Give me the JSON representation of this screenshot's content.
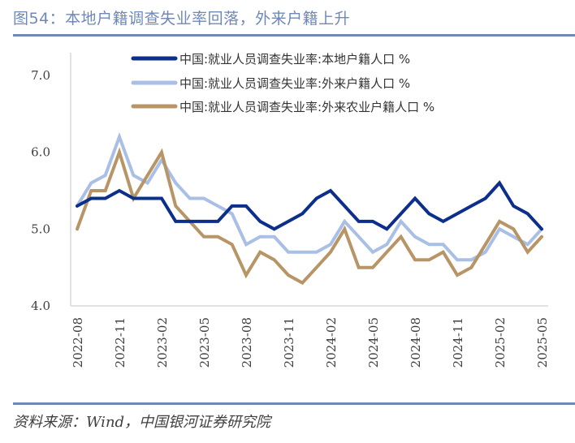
{
  "title": "图54：本地户籍调查失业率回落，外来户籍上升",
  "source": "资料来源：Wind，中国银河证券研究院",
  "chart_data": {
    "type": "line",
    "title": "",
    "xlabel": "",
    "ylabel": "",
    "ylim": [
      4.0,
      7.0
    ],
    "yticks": [
      "4.0",
      "5.0",
      "6.0",
      "7.0"
    ],
    "grid": false,
    "legend_position": "top",
    "x": [
      "2022-08",
      "2022-09",
      "2022-10",
      "2022-11",
      "2022-12",
      "2023-01",
      "2023-02",
      "2023-03",
      "2023-04",
      "2023-05",
      "2023-06",
      "2023-07",
      "2023-08",
      "2023-09",
      "2023-10",
      "2023-11",
      "2023-12",
      "2024-01",
      "2024-02",
      "2024-03",
      "2024-04",
      "2024-05",
      "2024-06",
      "2024-07",
      "2024-08",
      "2024-09",
      "2024-10",
      "2024-11",
      "2024-12",
      "2025-01",
      "2025-02",
      "2025-03",
      "2025-04",
      "2025-05"
    ],
    "xtick_labels": [
      "2022-08",
      "2022-11",
      "2023-02",
      "2023-05",
      "2023-08",
      "2023-11",
      "2024-02",
      "2024-05",
      "2024-08",
      "2024-11",
      "2025-02",
      "2025-05"
    ],
    "series": [
      {
        "name": "中国:就业人员调查失业率:本地户籍人口 %",
        "color": "#0D2F8C",
        "values": [
          5.3,
          5.4,
          5.4,
          5.5,
          5.4,
          5.4,
          5.4,
          5.1,
          5.1,
          5.1,
          5.1,
          5.3,
          5.3,
          5.1,
          5.0,
          5.1,
          5.2,
          5.4,
          5.5,
          5.3,
          5.1,
          5.1,
          5.0,
          5.2,
          5.4,
          5.2,
          5.1,
          5.2,
          5.3,
          5.4,
          5.6,
          5.3,
          5.2,
          5.0
        ]
      },
      {
        "name": "中国:就业人员调查失业率:外来户籍人口 %",
        "color": "#A9BFE6",
        "values": [
          5.3,
          5.6,
          5.7,
          6.2,
          5.7,
          5.6,
          5.9,
          5.6,
          5.4,
          5.4,
          5.3,
          5.2,
          4.8,
          4.9,
          4.9,
          4.7,
          4.7,
          4.7,
          4.8,
          5.1,
          4.9,
          4.7,
          4.8,
          5.1,
          4.9,
          4.8,
          4.8,
          4.6,
          4.6,
          4.7,
          5.0,
          4.9,
          4.8,
          5.0
        ]
      },
      {
        "name": "中国:就业人员调查失业率:外来农业户籍人口 %",
        "color": "#B89566",
        "values": [
          5.0,
          5.5,
          5.5,
          6.0,
          5.4,
          5.7,
          6.0,
          5.3,
          5.1,
          4.9,
          4.9,
          4.8,
          4.4,
          4.7,
          4.6,
          4.4,
          4.3,
          4.5,
          4.7,
          5.0,
          4.5,
          4.5,
          4.7,
          4.9,
          4.6,
          4.6,
          4.7,
          4.4,
          4.5,
          4.8,
          5.1,
          5.0,
          4.7,
          4.9
        ]
      }
    ]
  }
}
